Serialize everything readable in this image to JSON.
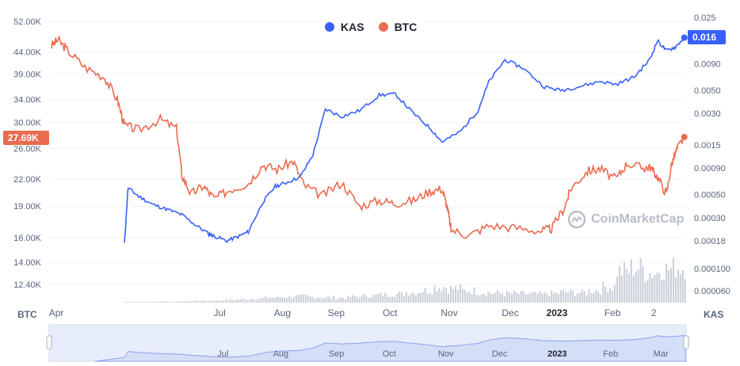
{
  "legend": [
    {
      "name": "KAS",
      "color": "#3861fb"
    },
    {
      "name": "BTC",
      "color": "#ea6b4f"
    }
  ],
  "price_tags": {
    "kas": "0.016",
    "btc": "27.69K"
  },
  "axis_units": {
    "left": "BTC",
    "right": "KAS"
  },
  "watermark": "CoinMarketCap",
  "colors": {
    "kas": "#3861fb",
    "btc": "#ea6b4f",
    "grid": "#eff2f5",
    "volume": "#c9cfd8",
    "navigator": "#e8edfb"
  },
  "chart_data": {
    "type": "line",
    "title": "",
    "scale": "log",
    "btc_axis_labels": [
      "52.00K",
      "44.00K",
      "39.00K",
      "34.00K",
      "30.00K",
      "26.00K",
      "22.00K",
      "19.00K",
      "16.00K",
      "14.00K",
      "12.40K"
    ],
    "kas_axis_labels": [
      "0.025",
      "0.0090",
      "0.0050",
      "0.0030",
      "0.0015",
      "0.00090",
      "0.00050",
      "0.00030",
      "0.00018",
      "0.000100",
      "0.000060"
    ],
    "x_tick_labels": [
      "Apr",
      "Jul",
      "Aug",
      "Sep",
      "Oct",
      "Nov",
      "Dec",
      "2023",
      "Feb",
      "2"
    ],
    "navigator_labels": [
      "Jul",
      "Aug",
      "Sep",
      "Oct",
      "Nov",
      "Dec",
      "2023",
      "Feb",
      "Mar"
    ],
    "series": [
      {
        "name": "BTC",
        "axis": "left",
        "x": [
          "2022-04-01",
          "2022-04-05",
          "2022-04-10",
          "2022-04-20",
          "2022-05-01",
          "2022-05-08",
          "2022-05-12",
          "2022-05-20",
          "2022-06-01",
          "2022-06-10",
          "2022-06-13",
          "2022-06-18",
          "2022-06-25",
          "2022-07-01",
          "2022-07-10",
          "2022-07-20",
          "2022-07-28",
          "2022-08-05",
          "2022-08-14",
          "2022-08-20",
          "2022-08-30",
          "2022-09-10",
          "2022-09-20",
          "2022-10-01",
          "2022-10-10",
          "2022-10-20",
          "2022-10-29",
          "2022-11-05",
          "2022-11-08",
          "2022-11-10",
          "2022-11-20",
          "2022-12-01",
          "2022-12-15",
          "2022-12-30",
          "2023-01-05",
          "2023-01-12",
          "2023-01-16",
          "2023-01-25",
          "2023-02-01",
          "2023-02-10",
          "2023-02-16",
          "2023-02-25",
          "2023-03-01",
          "2023-03-05",
          "2023-03-10",
          "2023-03-13",
          "2023-03-16",
          "2023-03-20"
        ],
        "y": [
          45500,
          47000,
          44500,
          40500,
          38300,
          34000,
          29500,
          28800,
          30500,
          29000,
          22500,
          20300,
          21200,
          19800,
          20800,
          21500,
          23800,
          23200,
          24300,
          21300,
          20100,
          21600,
          19000,
          19600,
          19300,
          19600,
          20600,
          20900,
          18800,
          16700,
          16200,
          17100,
          16900,
          16600,
          16800,
          18800,
          21000,
          23000,
          23300,
          22000,
          24000,
          23400,
          23500,
          22300,
          20300,
          24000,
          26000,
          27690
        ]
      },
      {
        "name": "KAS",
        "axis": "right",
        "x": [
          "2022-05-12",
          "2022-05-14",
          "2022-05-20",
          "2022-05-28",
          "2022-06-05",
          "2022-06-13",
          "2022-06-20",
          "2022-06-28",
          "2022-07-01",
          "2022-07-08",
          "2022-07-15",
          "2022-07-20",
          "2022-07-28",
          "2022-08-04",
          "2022-08-10",
          "2022-08-18",
          "2022-08-25",
          "2022-09-01",
          "2022-09-10",
          "2022-09-20",
          "2022-10-01",
          "2022-10-10",
          "2022-10-20",
          "2022-10-29",
          "2022-11-05",
          "2022-11-15",
          "2022-11-25",
          "2022-12-01",
          "2022-12-10",
          "2022-12-20",
          "2023-01-01",
          "2023-01-10",
          "2023-01-20",
          "2023-02-01",
          "2023-02-10",
          "2023-02-20",
          "2023-03-01",
          "2023-03-05",
          "2023-03-10",
          "2023-03-15",
          "2023-03-20"
        ],
        "y": [
          0.00017,
          0.00058,
          0.00048,
          0.0004,
          0.00036,
          0.00032,
          0.00026,
          0.00021,
          0.0002,
          0.00018,
          0.0002,
          0.00022,
          0.00042,
          0.0006,
          0.00065,
          0.00074,
          0.0012,
          0.0033,
          0.0028,
          0.0032,
          0.0045,
          0.0046,
          0.003,
          0.0022,
          0.0016,
          0.002,
          0.0032,
          0.006,
          0.0098,
          0.0082,
          0.0054,
          0.005,
          0.0054,
          0.0061,
          0.0057,
          0.0067,
          0.01,
          0.015,
          0.012,
          0.013,
          0.016
        ]
      }
    ],
    "volume": {
      "axis": "right-lower",
      "description_units": "relative",
      "x_start": "2022-05-12",
      "x_end": "2023-03-20",
      "values": [
        0.02,
        0.02,
        0.03,
        0.03,
        0.04,
        0.05,
        0.06,
        0.08,
        0.1,
        0.12,
        0.14,
        0.16,
        0.18,
        0.16,
        0.15,
        0.14,
        0.17,
        0.2,
        0.22,
        0.25,
        0.3,
        0.35,
        0.45,
        0.4,
        0.34,
        0.3,
        0.28,
        0.26,
        0.25,
        0.24,
        0.26,
        0.3,
        0.28,
        0.35,
        0.45,
        0.9,
        1.0,
        0.85,
        0.95,
        1.0
      ]
    }
  }
}
